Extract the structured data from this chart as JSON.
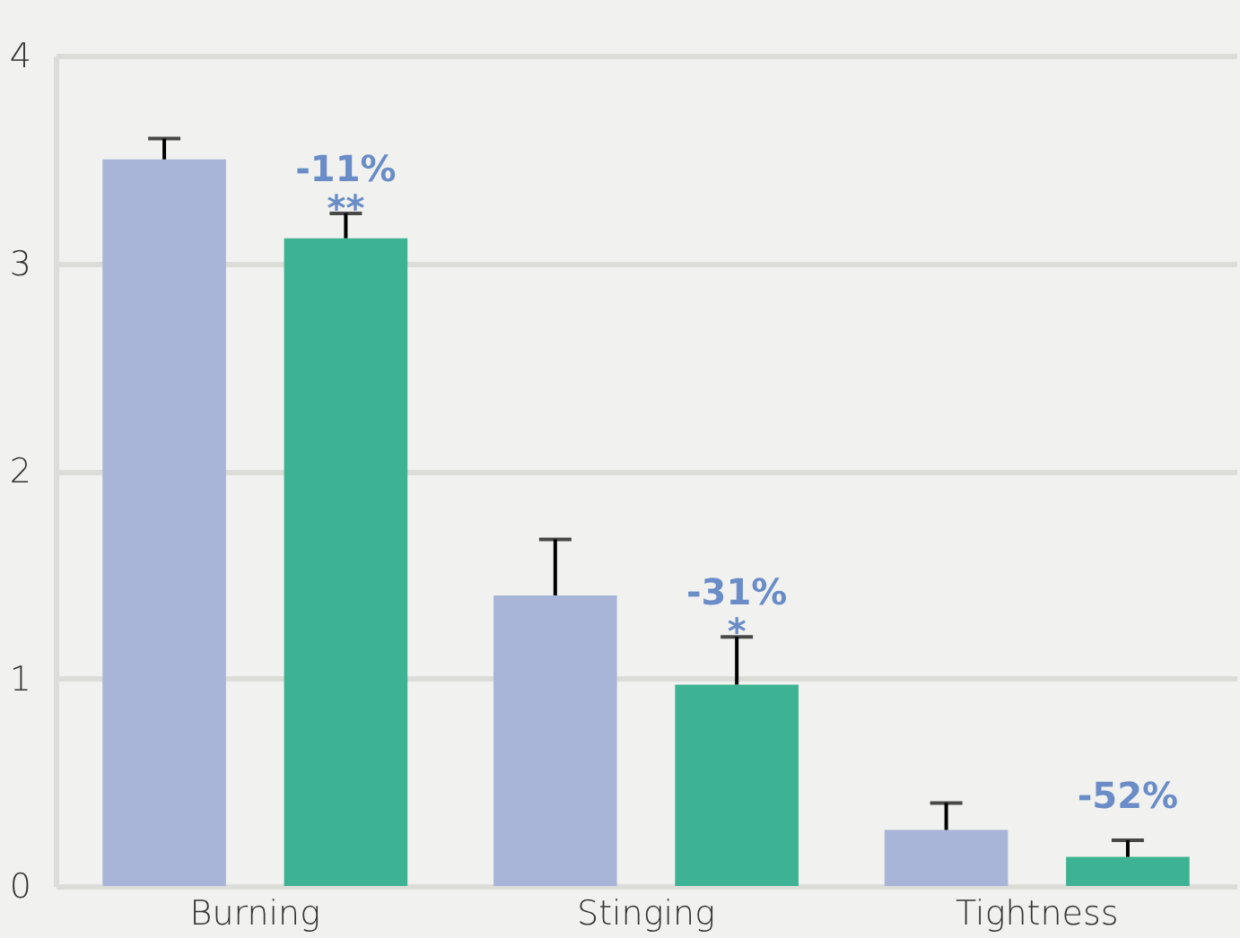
{
  "chart_data": {
    "type": "bar",
    "categories": [
      "Burning",
      "Stinging",
      "Tightness"
    ],
    "series": [
      {
        "color": "#a9b5d8",
        "values": [
          3.5,
          1.4,
          0.27
        ],
        "errors": [
          [
            3.5,
            3.6
          ],
          [
            1.4,
            1.67
          ],
          [
            0.27,
            0.4
          ]
        ]
      },
      {
        "color": "#3db394",
        "values": [
          3.12,
          0.97,
          0.14
        ],
        "errors": [
          [
            3.12,
            3.24
          ],
          [
            0.97,
            1.2
          ],
          [
            0.14,
            0.22
          ]
        ]
      }
    ],
    "ylim": [
      0,
      4
    ],
    "yticks": [
      0,
      1,
      2,
      3,
      4
    ],
    "grid": "y",
    "legend": false,
    "annotations": [
      "-11%\n**",
      "-31%\n*",
      "-52%"
    ]
  }
}
